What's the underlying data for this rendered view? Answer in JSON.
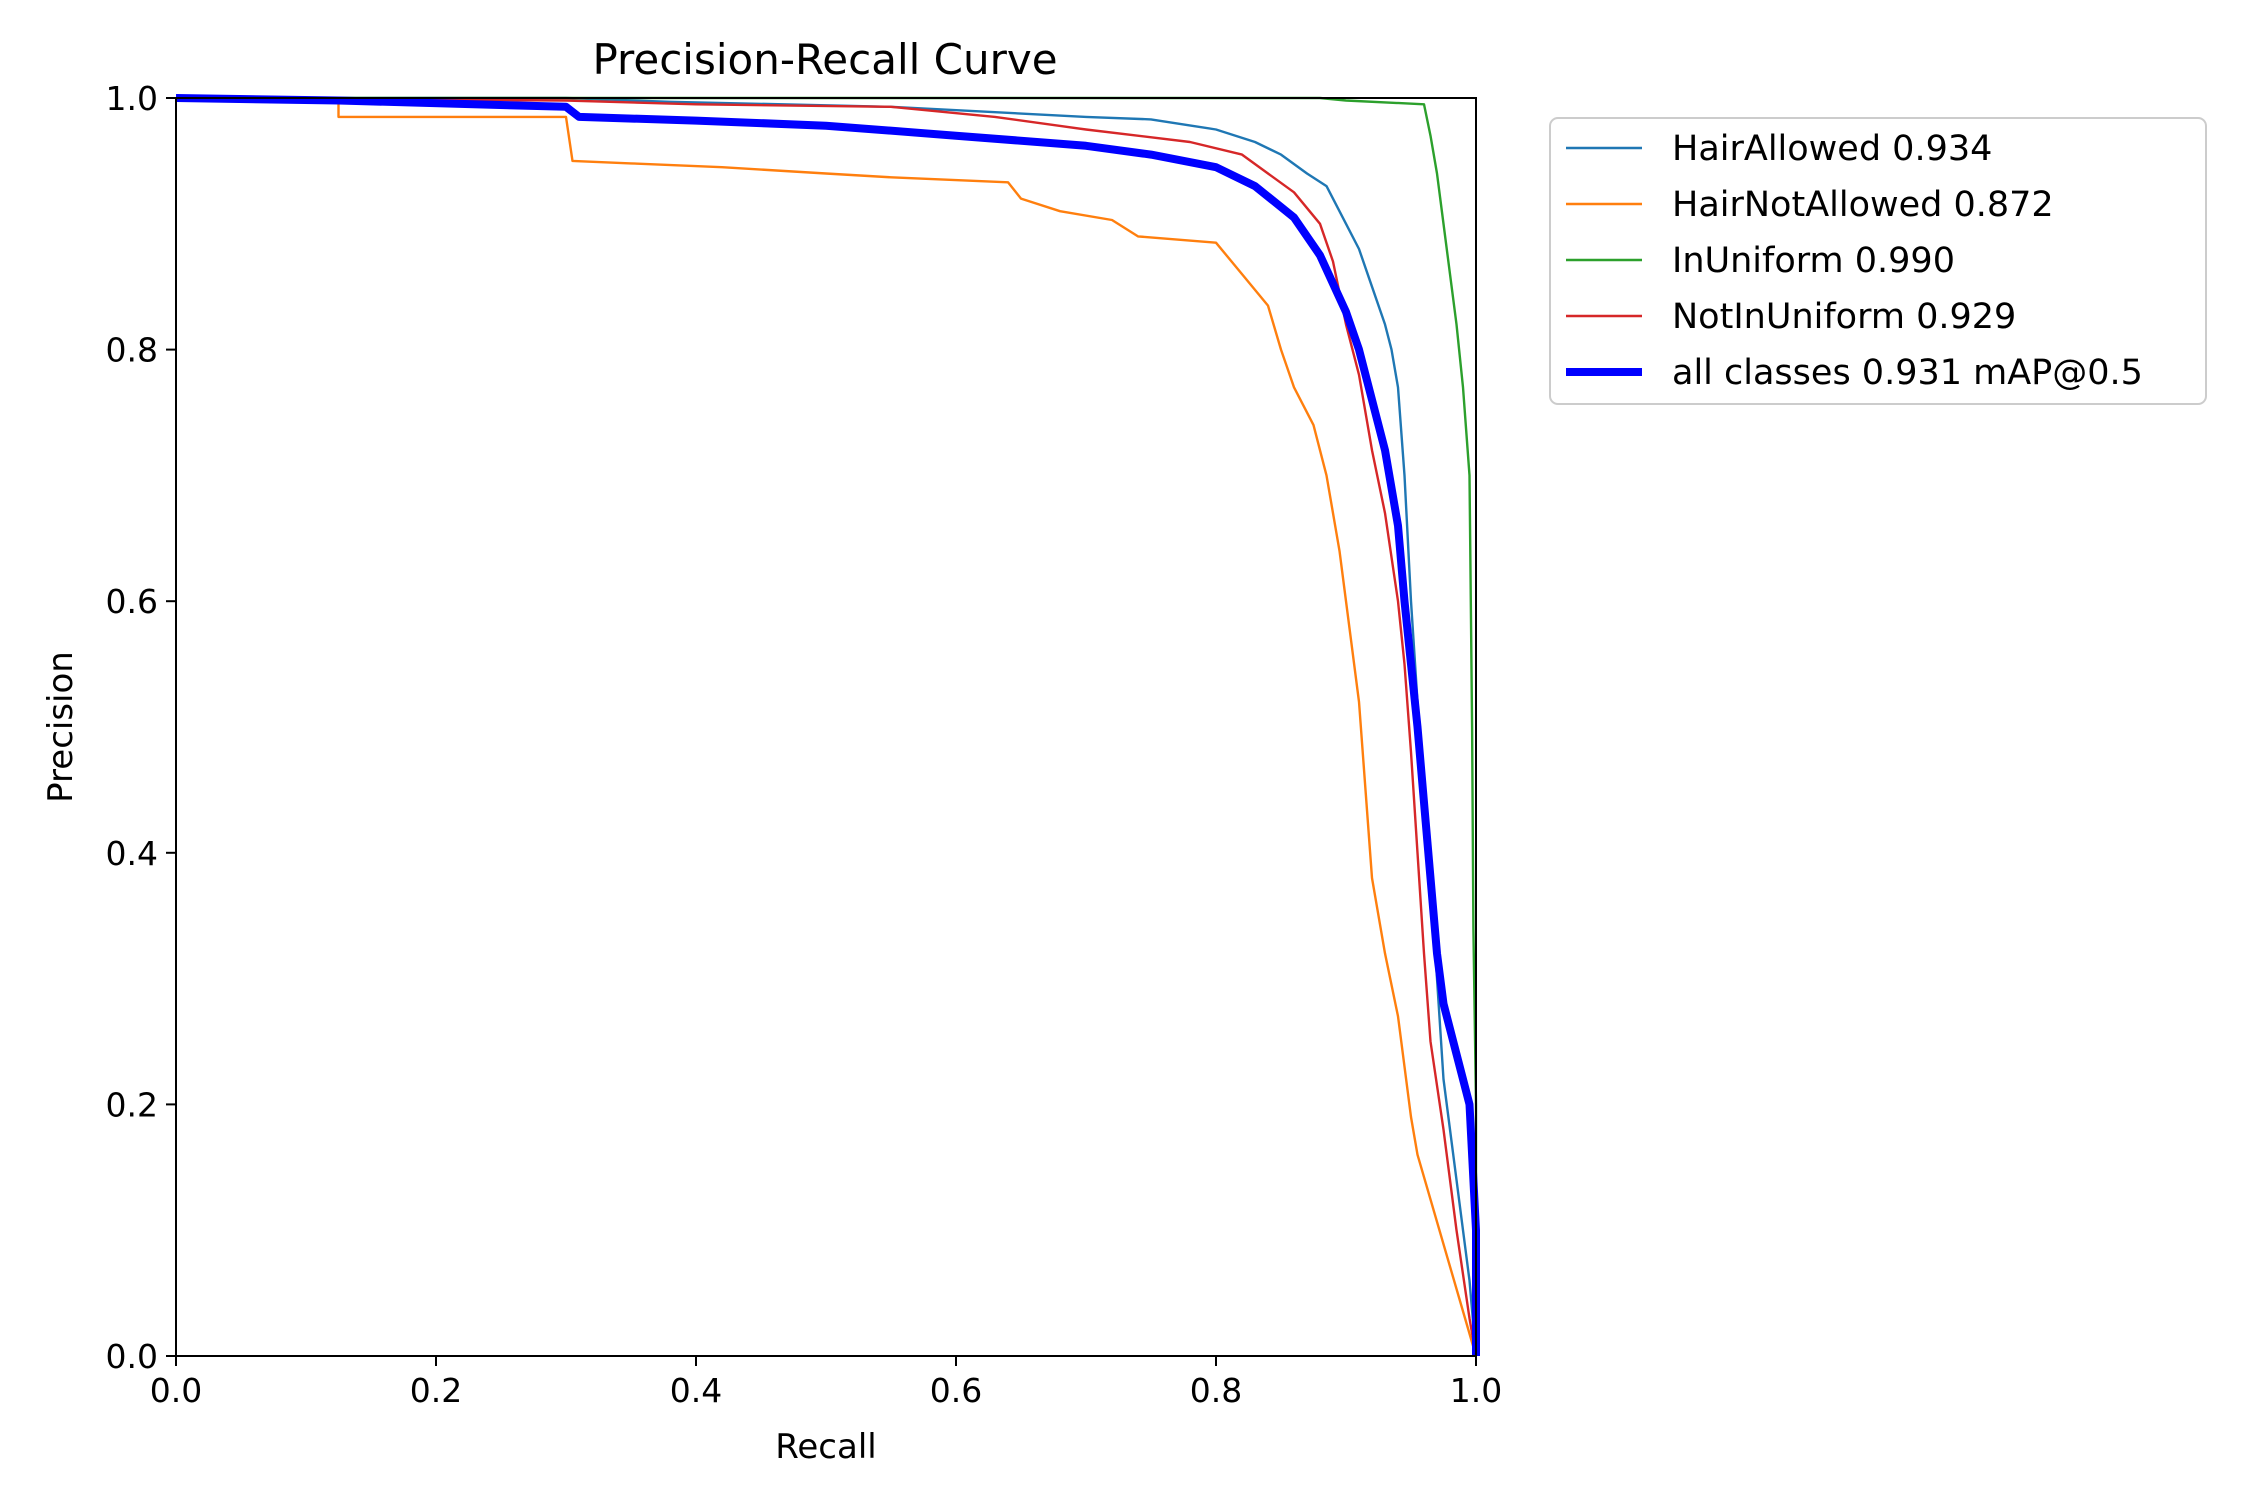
{
  "chart_data": {
    "type": "line",
    "title": "Precision-Recall Curve",
    "xlabel": "Recall",
    "ylabel": "Precision",
    "xlim": [
      0,
      1
    ],
    "ylim": [
      0,
      1
    ],
    "xticks": [
      "0.0",
      "0.2",
      "0.4",
      "0.6",
      "0.8",
      "1.0"
    ],
    "yticks": [
      "0.0",
      "0.2",
      "0.4",
      "0.6",
      "0.8",
      "1.0"
    ],
    "grid": false,
    "legend_position": "outside-top-right",
    "series": [
      {
        "name": "HairAllowed 0.934",
        "color": "#1f77b4",
        "emphasis": false,
        "points": [
          [
            0,
            1.0
          ],
          [
            0.3,
            1.0
          ],
          [
            0.38,
            0.997
          ],
          [
            0.55,
            0.993
          ],
          [
            0.7,
            0.985
          ],
          [
            0.75,
            0.983
          ],
          [
            0.8,
            0.975
          ],
          [
            0.83,
            0.965
          ],
          [
            0.85,
            0.955
          ],
          [
            0.87,
            0.94
          ],
          [
            0.885,
            0.93
          ],
          [
            0.9,
            0.9
          ],
          [
            0.91,
            0.88
          ],
          [
            0.92,
            0.85
          ],
          [
            0.93,
            0.82
          ],
          [
            0.935,
            0.8
          ],
          [
            0.94,
            0.77
          ],
          [
            0.945,
            0.7
          ],
          [
            0.95,
            0.6
          ],
          [
            0.955,
            0.52
          ],
          [
            0.96,
            0.45
          ],
          [
            0.965,
            0.38
          ],
          [
            0.97,
            0.3
          ],
          [
            0.975,
            0.22
          ],
          [
            0.985,
            0.14
          ],
          [
            0.995,
            0.06
          ],
          [
            1.0,
            0.0
          ]
        ]
      },
      {
        "name": "HairNotAllowed 0.872",
        "color": "#ff7f0e",
        "emphasis": false,
        "points": [
          [
            0,
            1.0
          ],
          [
            0.125,
            0.998
          ],
          [
            0.125,
            0.985
          ],
          [
            0.3,
            0.985
          ],
          [
            0.305,
            0.95
          ],
          [
            0.35,
            0.948
          ],
          [
            0.42,
            0.945
          ],
          [
            0.5,
            0.94
          ],
          [
            0.55,
            0.937
          ],
          [
            0.64,
            0.933
          ],
          [
            0.65,
            0.92
          ],
          [
            0.68,
            0.91
          ],
          [
            0.72,
            0.903
          ],
          [
            0.74,
            0.89
          ],
          [
            0.8,
            0.885
          ],
          [
            0.82,
            0.86
          ],
          [
            0.84,
            0.835
          ],
          [
            0.85,
            0.8
          ],
          [
            0.86,
            0.77
          ],
          [
            0.875,
            0.74
          ],
          [
            0.885,
            0.7
          ],
          [
            0.895,
            0.64
          ],
          [
            0.9,
            0.6
          ],
          [
            0.91,
            0.52
          ],
          [
            0.915,
            0.45
          ],
          [
            0.92,
            0.38
          ],
          [
            0.93,
            0.32
          ],
          [
            0.94,
            0.27
          ],
          [
            0.95,
            0.19
          ],
          [
            0.955,
            0.16
          ],
          [
            1.0,
            0.0
          ]
        ]
      },
      {
        "name": "InUniform 0.990",
        "color": "#2ca02c",
        "emphasis": false,
        "points": [
          [
            0,
            1.0
          ],
          [
            0.88,
            1.0
          ],
          [
            0.9,
            0.998
          ],
          [
            0.96,
            0.995
          ],
          [
            0.965,
            0.97
          ],
          [
            0.97,
            0.94
          ],
          [
            0.975,
            0.9
          ],
          [
            0.98,
            0.86
          ],
          [
            0.985,
            0.82
          ],
          [
            0.99,
            0.77
          ],
          [
            0.995,
            0.7
          ],
          [
            0.997,
            0.5
          ],
          [
            0.998,
            0.34
          ],
          [
            1.0,
            0.2
          ],
          [
            1.0,
            0.0
          ]
        ]
      },
      {
        "name": "NotInUniform 0.929",
        "color": "#d62728",
        "emphasis": false,
        "points": [
          [
            0,
            1.0
          ],
          [
            0.3,
            0.998
          ],
          [
            0.4,
            0.995
          ],
          [
            0.55,
            0.993
          ],
          [
            0.63,
            0.985
          ],
          [
            0.7,
            0.975
          ],
          [
            0.78,
            0.965
          ],
          [
            0.82,
            0.955
          ],
          [
            0.84,
            0.94
          ],
          [
            0.86,
            0.925
          ],
          [
            0.88,
            0.9
          ],
          [
            0.89,
            0.87
          ],
          [
            0.9,
            0.82
          ],
          [
            0.91,
            0.78
          ],
          [
            0.92,
            0.72
          ],
          [
            0.93,
            0.67
          ],
          [
            0.94,
            0.6
          ],
          [
            0.945,
            0.55
          ],
          [
            0.95,
            0.48
          ],
          [
            0.955,
            0.4
          ],
          [
            0.96,
            0.32
          ],
          [
            0.965,
            0.25
          ],
          [
            0.975,
            0.18
          ],
          [
            0.985,
            0.1
          ],
          [
            0.995,
            0.03
          ],
          [
            1.0,
            0.0
          ]
        ]
      },
      {
        "name": "all classes 0.931 mAP@0.5",
        "color": "#0000ff",
        "emphasis": true,
        "points": [
          [
            0,
            1.0
          ],
          [
            0.125,
            0.998
          ],
          [
            0.3,
            0.993
          ],
          [
            0.31,
            0.985
          ],
          [
            0.4,
            0.982
          ],
          [
            0.5,
            0.978
          ],
          [
            0.6,
            0.97
          ],
          [
            0.7,
            0.962
          ],
          [
            0.75,
            0.955
          ],
          [
            0.8,
            0.945
          ],
          [
            0.83,
            0.93
          ],
          [
            0.86,
            0.905
          ],
          [
            0.88,
            0.875
          ],
          [
            0.9,
            0.83
          ],
          [
            0.91,
            0.8
          ],
          [
            0.92,
            0.76
          ],
          [
            0.93,
            0.72
          ],
          [
            0.94,
            0.66
          ],
          [
            0.945,
            0.6
          ],
          [
            0.95,
            0.55
          ],
          [
            0.955,
            0.5
          ],
          [
            0.96,
            0.44
          ],
          [
            0.965,
            0.38
          ],
          [
            0.97,
            0.32
          ],
          [
            0.975,
            0.28
          ],
          [
            0.985,
            0.24
          ],
          [
            0.995,
            0.2
          ],
          [
            1.0,
            0.1
          ],
          [
            1.0,
            0.0
          ]
        ]
      }
    ]
  }
}
